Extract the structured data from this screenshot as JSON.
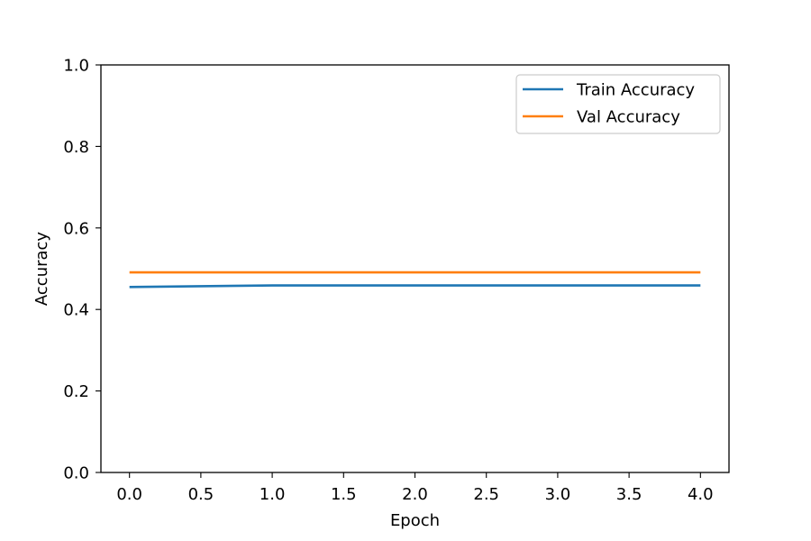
{
  "chart_data": {
    "type": "line",
    "title": "",
    "xlabel": "Epoch",
    "ylabel": "Accuracy",
    "xlim": [
      -0.2,
      4.2
    ],
    "ylim": [
      0.0,
      1.0
    ],
    "xticks": [
      0.0,
      0.5,
      1.0,
      1.5,
      2.0,
      2.5,
      3.0,
      3.5,
      4.0
    ],
    "xtick_labels": [
      "0.0",
      "0.5",
      "1.0",
      "1.5",
      "2.0",
      "2.5",
      "3.0",
      "3.5",
      "4.0"
    ],
    "yticks": [
      0.0,
      0.2,
      0.4,
      0.6,
      0.8,
      1.0
    ],
    "ytick_labels": [
      "0.0",
      "0.2",
      "0.4",
      "0.6",
      "0.8",
      "1.0"
    ],
    "grid": false,
    "legend_position": "top-right",
    "x": [
      0,
      1,
      2,
      3,
      4
    ],
    "series": [
      {
        "name": "Train Accuracy",
        "color": "#1f77b4",
        "values": [
          0.455,
          0.459,
          0.459,
          0.459,
          0.459
        ]
      },
      {
        "name": "Val Accuracy",
        "color": "#ff7f0e",
        "values": [
          0.491,
          0.491,
          0.491,
          0.491,
          0.491
        ]
      }
    ]
  }
}
